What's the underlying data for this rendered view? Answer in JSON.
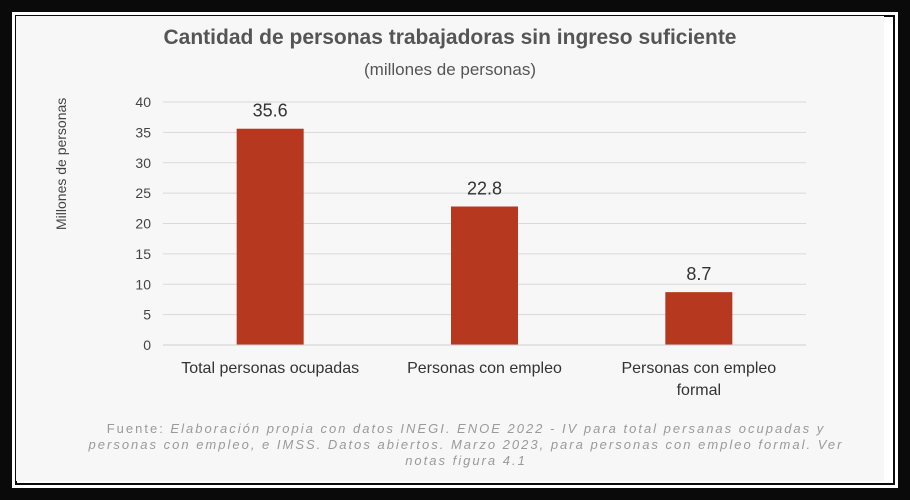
{
  "chart_data": {
    "type": "bar",
    "title": "Cantidad de personas trabajadoras sin ingreso suficiente",
    "subtitle": "(millones de personas)",
    "ylabel": "Millones de personas",
    "xlabel": "",
    "categories": [
      "Total personas ocupadas",
      "Personas con empleo",
      "Personas con empleo formal"
    ],
    "category_lines": [
      [
        "Total personas ocupadas"
      ],
      [
        "Personas con empleo"
      ],
      [
        "Personas con empleo",
        "formal"
      ]
    ],
    "values": [
      35.6,
      22.8,
      8.7
    ],
    "data_labels": [
      "35.6",
      "22.8",
      "8.7"
    ],
    "ylim": [
      0,
      40
    ],
    "yticks": [
      "0",
      "5",
      "10",
      "15",
      "20",
      "25",
      "30",
      "35",
      "40"
    ],
    "grid": true,
    "legend": "none",
    "bar_color": "#b5381f"
  },
  "source_note": {
    "prefix": "Fuente: ",
    "text": "Elaboración propia con datos INEGI. ENOE 2022 - IV para total persanas ocupadas y personas con empleo, e IMSS. Datos abiertos. Marzo 2023, para personas con empleo formal. Ver notas figura 4.1"
  },
  "colors": {
    "frame": "#0a0a0a",
    "background": "#f7f7f7",
    "gridline": "#d9d9d9",
    "text": "#555555"
  }
}
